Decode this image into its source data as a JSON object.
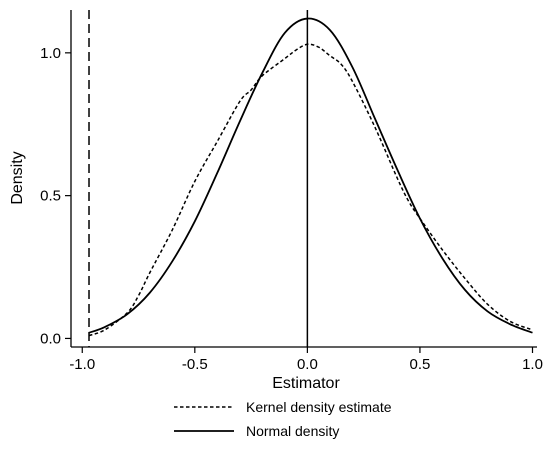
{
  "chart_data": {
    "type": "line",
    "title": "",
    "xlabel": "Estimator",
    "ylabel": "Density",
    "xlim": [
      -1.05,
      1.02
    ],
    "ylim": [
      -0.03,
      1.15
    ],
    "xticks": [
      -1.0,
      -0.5,
      0.0,
      0.5,
      1.0
    ],
    "xtick_labels": [
      "-1.0",
      "-0.5",
      "0.0",
      "0.5",
      "1.0"
    ],
    "yticks": [
      0.0,
      0.5,
      1.0
    ],
    "ytick_labels": [
      "0.0",
      "0.5",
      "1.0"
    ],
    "grid": false,
    "legend_position": "bottom",
    "reference_lines": [
      {
        "x": -0.97,
        "style": "dashed"
      },
      {
        "x": 0.0,
        "style": "solid"
      }
    ],
    "series": [
      {
        "name": "Kernel density estimate",
        "style": "dotted",
        "x": [
          -0.97,
          -0.9,
          -0.8,
          -0.75,
          -0.7,
          -0.6,
          -0.5,
          -0.4,
          -0.3,
          -0.25,
          -0.2,
          -0.1,
          -0.05,
          0.0,
          0.05,
          0.1,
          0.15,
          0.2,
          0.3,
          0.4,
          0.45,
          0.5,
          0.6,
          0.7,
          0.8,
          0.9,
          1.0
        ],
        "values": [
          0.01,
          0.03,
          0.09,
          0.15,
          0.23,
          0.38,
          0.55,
          0.69,
          0.83,
          0.87,
          0.92,
          0.98,
          1.01,
          1.03,
          1.02,
          0.99,
          0.96,
          0.9,
          0.74,
          0.56,
          0.48,
          0.42,
          0.31,
          0.21,
          0.12,
          0.06,
          0.03
        ]
      },
      {
        "name": "Normal density",
        "style": "solid",
        "x": [
          -0.97,
          -0.9,
          -0.8,
          -0.7,
          -0.6,
          -0.5,
          -0.4,
          -0.3,
          -0.2,
          -0.1,
          0.0,
          0.1,
          0.2,
          0.3,
          0.4,
          0.5,
          0.6,
          0.7,
          0.8,
          0.9,
          1.0
        ],
        "values": [
          0.02,
          0.04,
          0.085,
          0.16,
          0.27,
          0.41,
          0.58,
          0.76,
          0.93,
          1.07,
          1.12,
          1.08,
          0.95,
          0.77,
          0.59,
          0.42,
          0.28,
          0.17,
          0.095,
          0.05,
          0.02
        ]
      }
    ]
  }
}
